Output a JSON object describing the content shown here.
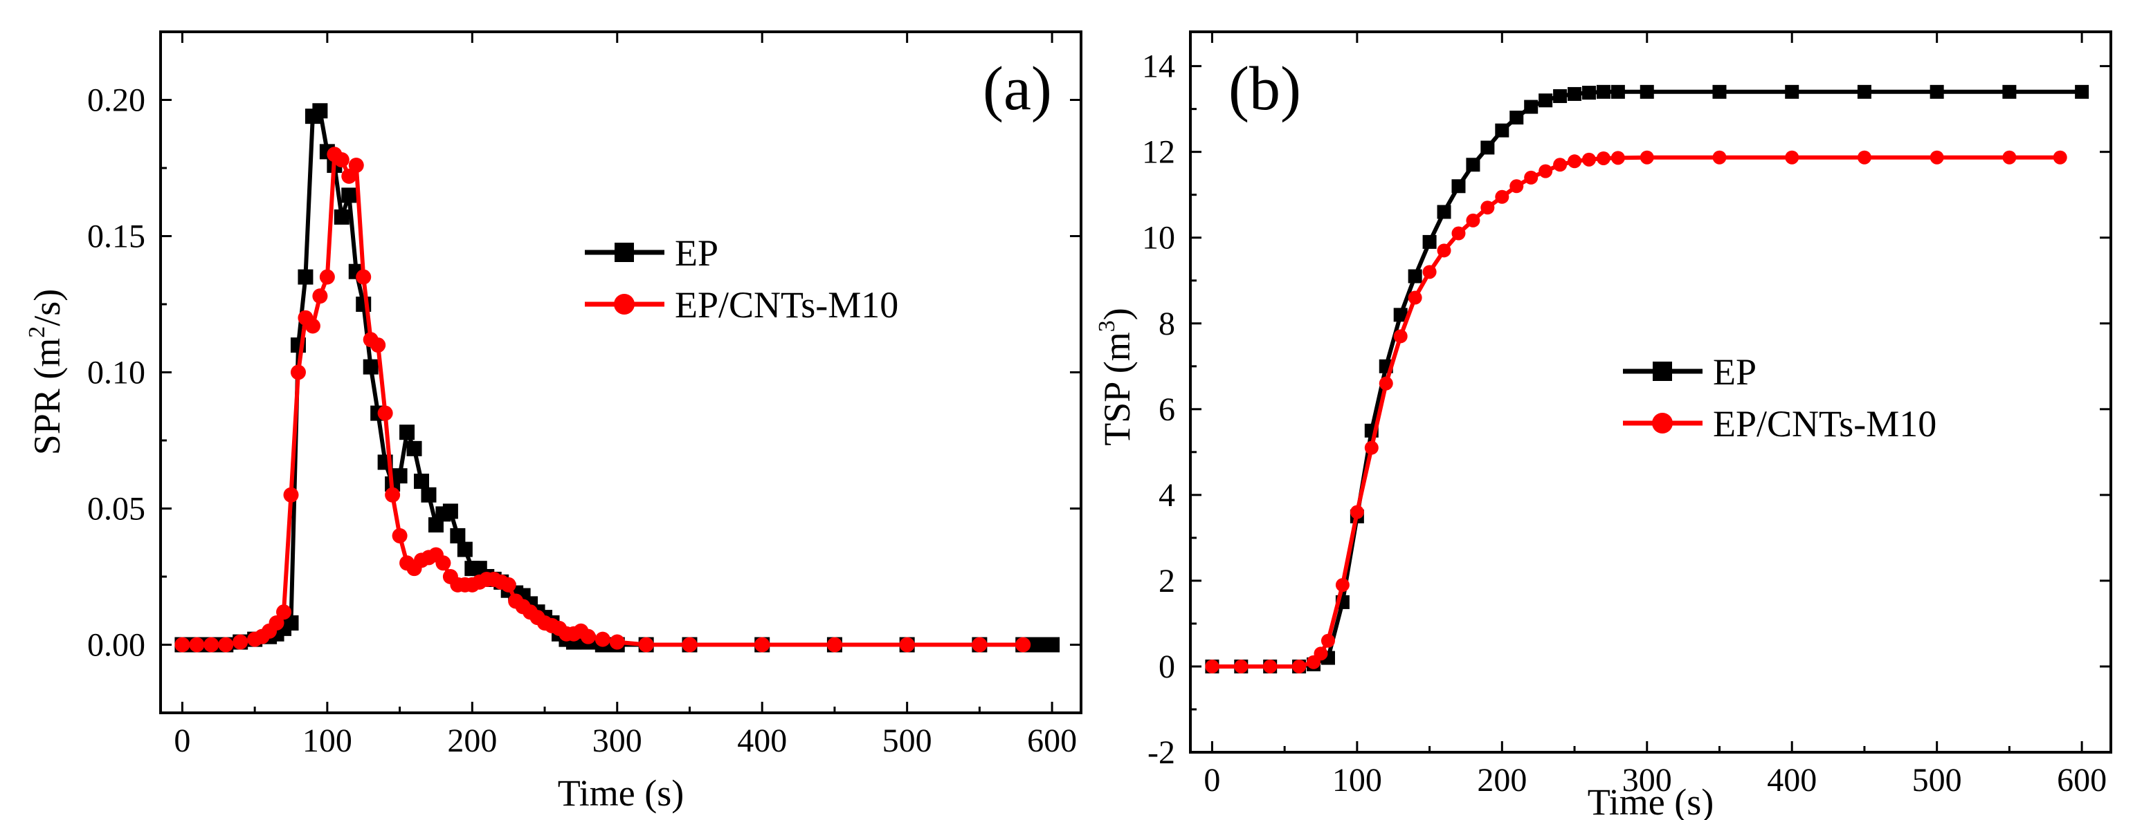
{
  "colors": {
    "ep": "#000000",
    "cnt": "#ff0000"
  },
  "chart_data": [
    {
      "type": "line",
      "panel_label": "(a)",
      "xlabel": "Time (s)",
      "ylabel_main": "SPR (m",
      "ylabel_sup": "2",
      "ylabel_tail": "/s)",
      "xlim": [
        -15,
        620
      ],
      "ylim": [
        -0.025,
        0.225
      ],
      "xticks": [
        0,
        100,
        200,
        300,
        400,
        500,
        600
      ],
      "xtick_labels": [
        "0",
        "100",
        "200",
        "300",
        "400",
        "500",
        "600"
      ],
      "yticks": [
        0.0,
        0.05,
        0.1,
        0.15,
        0.2
      ],
      "ytick_labels": [
        "0.00",
        "0.05",
        "0.10",
        "0.15",
        "0.20"
      ],
      "legend_position": "center-right",
      "series": [
        {
          "name": "EP",
          "color": "#000000",
          "marker": "square",
          "x": [
            0,
            10,
            20,
            30,
            40,
            50,
            60,
            65,
            70,
            75,
            80,
            85,
            90,
            95,
            100,
            105,
            110,
            115,
            120,
            125,
            130,
            135,
            140,
            145,
            150,
            155,
            160,
            165,
            170,
            175,
            180,
            185,
            190,
            195,
            200,
            205,
            210,
            215,
            220,
            225,
            230,
            235,
            240,
            245,
            250,
            255,
            260,
            265,
            270,
            280,
            290,
            300,
            320,
            350,
            400,
            450,
            500,
            550,
            580,
            590,
            600
          ],
          "y": [
            0,
            0,
            0,
            0,
            0.001,
            0.002,
            0.003,
            0.004,
            0.006,
            0.008,
            0.11,
            0.135,
            0.194,
            0.196,
            0.181,
            0.176,
            0.157,
            0.165,
            0.137,
            0.125,
            0.102,
            0.085,
            0.067,
            0.059,
            0.062,
            0.078,
            0.072,
            0.06,
            0.055,
            0.044,
            0.048,
            0.049,
            0.04,
            0.035,
            0.028,
            0.028,
            0.025,
            0.024,
            0.023,
            0.02,
            0.019,
            0.018,
            0.015,
            0.012,
            0.01,
            0.008,
            0.004,
            0.002,
            0.001,
            0.001,
            0,
            0,
            0,
            0,
            0,
            0,
            0,
            0,
            0,
            0,
            0
          ]
        },
        {
          "name": "EP/CNTs-M10",
          "color": "#ff0000",
          "marker": "circle",
          "x": [
            0,
            10,
            20,
            30,
            40,
            50,
            55,
            60,
            65,
            70,
            75,
            80,
            85,
            90,
            95,
            100,
            105,
            110,
            115,
            120,
            125,
            130,
            135,
            140,
            145,
            150,
            155,
            160,
            165,
            170,
            175,
            180,
            185,
            190,
            195,
            200,
            205,
            210,
            215,
            220,
            225,
            230,
            235,
            240,
            245,
            250,
            255,
            260,
            265,
            270,
            275,
            280,
            290,
            300,
            320,
            350,
            400,
            450,
            500,
            550,
            580
          ],
          "y": [
            0,
            0,
            0,
            0,
            0.001,
            0.002,
            0.003,
            0.005,
            0.008,
            0.012,
            0.055,
            0.1,
            0.12,
            0.117,
            0.128,
            0.135,
            0.18,
            0.178,
            0.172,
            0.176,
            0.135,
            0.112,
            0.11,
            0.085,
            0.055,
            0.04,
            0.03,
            0.028,
            0.031,
            0.032,
            0.033,
            0.03,
            0.025,
            0.022,
            0.022,
            0.022,
            0.023,
            0.024,
            0.024,
            0.023,
            0.022,
            0.016,
            0.014,
            0.012,
            0.01,
            0.008,
            0.007,
            0.006,
            0.004,
            0.004,
            0.005,
            0.003,
            0.002,
            0.001,
            0,
            0,
            0,
            0,
            0,
            0,
            0
          ]
        }
      ]
    },
    {
      "type": "line",
      "panel_label": "(b)",
      "xlabel": "Time (s)",
      "ylabel_main": "TSP (m",
      "ylabel_sup": "3",
      "ylabel_tail": ")",
      "xlim": [
        -15,
        620
      ],
      "ylim": [
        -2,
        14.8
      ],
      "xticks": [
        0,
        100,
        200,
        300,
        400,
        500,
        600
      ],
      "xtick_labels": [
        "0",
        "100",
        "200",
        "300",
        "400",
        "500",
        "600"
      ],
      "yticks": [
        -2,
        0,
        2,
        4,
        6,
        8,
        10,
        12,
        14
      ],
      "ytick_labels": [
        "-2",
        "0",
        "2",
        "4",
        "6",
        "8",
        "10",
        "12",
        "14"
      ],
      "legend_position": "center-right",
      "series": [
        {
          "name": "EP",
          "color": "#000000",
          "marker": "square",
          "x": [
            0,
            20,
            40,
            60,
            70,
            80,
            90,
            100,
            110,
            120,
            130,
            140,
            150,
            160,
            170,
            180,
            190,
            200,
            210,
            220,
            230,
            240,
            250,
            260,
            270,
            280,
            300,
            350,
            400,
            450,
            500,
            550,
            600
          ],
          "y": [
            0,
            0,
            0,
            0,
            0.05,
            0.2,
            1.5,
            3.5,
            5.5,
            7.0,
            8.2,
            9.1,
            9.9,
            10.6,
            11.2,
            11.7,
            12.1,
            12.5,
            12.8,
            13.05,
            13.2,
            13.3,
            13.35,
            13.38,
            13.4,
            13.4,
            13.4,
            13.4,
            13.4,
            13.4,
            13.4,
            13.4,
            13.4
          ]
        },
        {
          "name": "EP/CNTs-M10",
          "color": "#ff0000",
          "marker": "circle",
          "x": [
            0,
            20,
            40,
            60,
            70,
            75,
            80,
            90,
            100,
            110,
            120,
            130,
            140,
            150,
            160,
            170,
            180,
            190,
            200,
            210,
            220,
            230,
            240,
            250,
            260,
            270,
            280,
            300,
            350,
            400,
            450,
            500,
            550,
            585
          ],
          "y": [
            0,
            0,
            0,
            0,
            0.1,
            0.3,
            0.6,
            1.9,
            3.6,
            5.1,
            6.6,
            7.7,
            8.6,
            9.2,
            9.7,
            10.1,
            10.4,
            10.7,
            10.95,
            11.2,
            11.4,
            11.55,
            11.7,
            11.78,
            11.82,
            11.85,
            11.86,
            11.87,
            11.87,
            11.87,
            11.87,
            11.87,
            11.87,
            11.87
          ]
        }
      ]
    }
  ]
}
